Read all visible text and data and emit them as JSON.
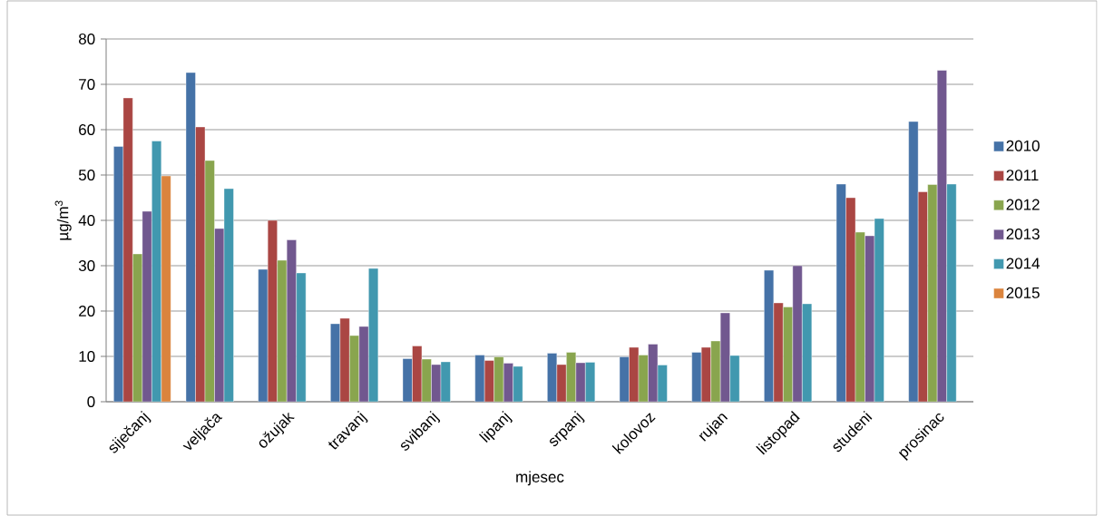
{
  "chart_data": {
    "type": "bar",
    "xlabel": "mjesec",
    "ylabel": "µg/m$^{3}$",
    "categories": [
      "siječanj",
      "veljača",
      "ožujak",
      "travanj",
      "svibanj",
      "lipanj",
      "srpanj",
      "kolovoz",
      "rujan",
      "listopad",
      "studeni",
      "prosinac"
    ],
    "series": [
      {
        "name": "2010",
        "color": "#4572a7",
        "values": [
          56.3,
          72.6,
          29.2,
          17.2,
          9.5,
          10.3,
          10.7,
          9.9,
          10.9,
          29,
          48,
          61.8
        ]
      },
      {
        "name": "2011",
        "color": "#aa4643",
        "values": [
          67,
          60.6,
          40,
          18.4,
          12.3,
          9.1,
          8.2,
          12,
          12,
          21.8,
          45,
          46.3
        ]
      },
      {
        "name": "2012",
        "color": "#89a54e",
        "values": [
          32.6,
          53.2,
          31.2,
          14.6,
          9.4,
          9.9,
          10.9,
          10.3,
          13.4,
          20.9,
          37.4,
          47.9
        ]
      },
      {
        "name": "2013",
        "color": "#71588f",
        "values": [
          42,
          38.2,
          35.7,
          16.6,
          8.2,
          8.5,
          8.6,
          12.7,
          19.6,
          30,
          36.6,
          73.1
        ]
      },
      {
        "name": "2014",
        "color": "#4198af",
        "values": [
          57.5,
          47,
          28.4,
          29.4,
          8.8,
          7.8,
          8.7,
          8.1,
          10.2,
          21.6,
          40.4,
          48
        ]
      },
      {
        "name": "2015",
        "color": "#db843d",
        "values": [
          49.8,
          null,
          null,
          null,
          null,
          null,
          null,
          null,
          null,
          null,
          null,
          null
        ]
      }
    ],
    "ylim": [
      0,
      80
    ],
    "yticks": [
      0,
      10,
      20,
      30,
      40,
      50,
      60,
      70,
      80
    ],
    "grid": "y",
    "legend": "right"
  }
}
